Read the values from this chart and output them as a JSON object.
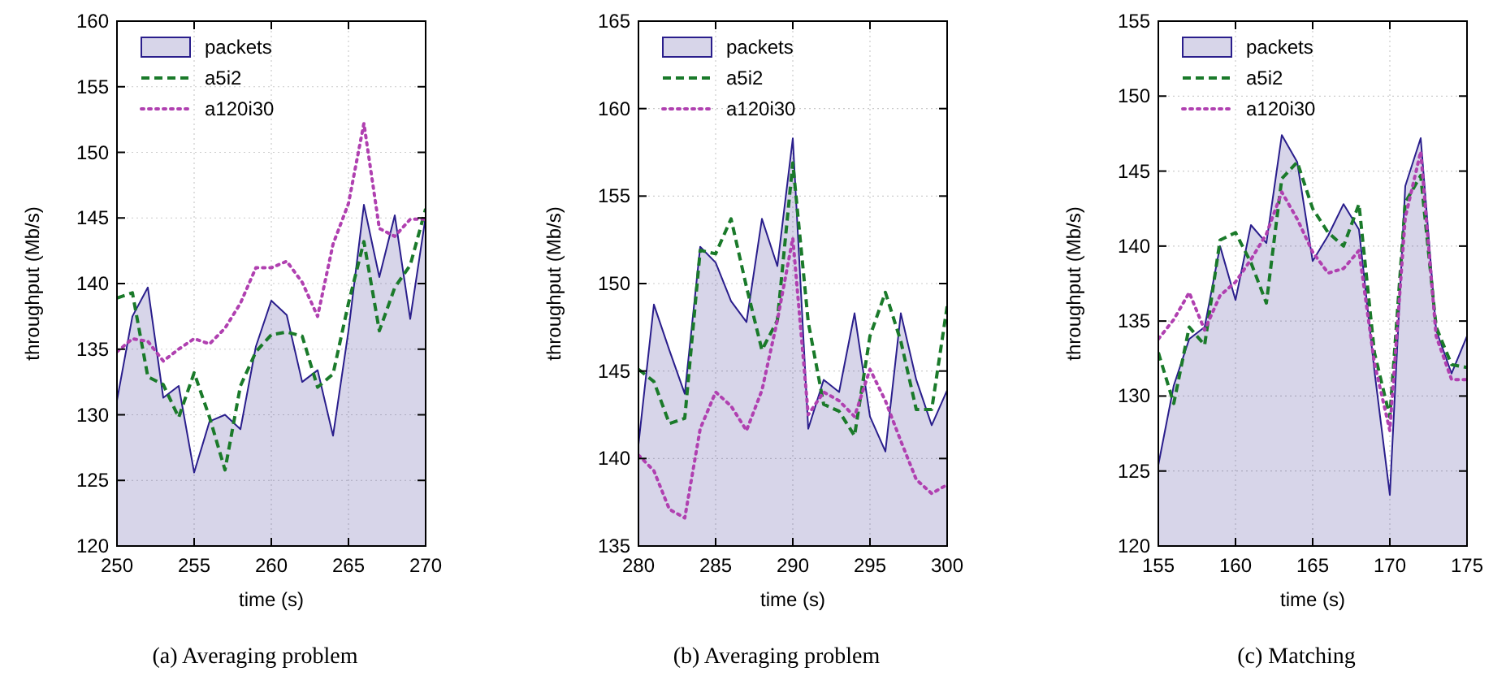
{
  "chart_data": [
    {
      "type": "line",
      "xlabel": "time (s)",
      "ylabel": "throughput (Mb/s)",
      "annotations": [
        "(a) Averaging problem"
      ],
      "x": [
        250,
        251,
        252,
        253,
        254,
        255,
        256,
        257,
        258,
        259,
        260,
        261,
        262,
        263,
        264,
        265,
        266,
        267,
        268,
        269,
        270
      ],
      "xlim": [
        250,
        270
      ],
      "xticks": [
        250,
        255,
        260,
        265,
        270
      ],
      "ylim": [
        120,
        160
      ],
      "yticks": [
        120,
        125,
        130,
        135,
        140,
        145,
        150,
        155,
        160
      ],
      "grid": true,
      "legend": "top left",
      "series": [
        {
          "name": "packets",
          "type": "area",
          "color": "#2a1e8c",
          "line_style": "solid",
          "values": [
            131.1,
            137.5,
            139.7,
            131.3,
            132.2,
            125.6,
            129.5,
            130,
            128.9,
            135.2,
            138.7,
            137.6,
            132.5,
            133.4,
            128.4,
            136.4,
            146,
            140.5,
            145.2,
            137.3,
            145.1
          ]
        },
        {
          "name": "a5i2",
          "type": "line",
          "color": "#1a7a2a",
          "line_style": "dashed",
          "values": [
            138.9,
            139.3,
            132.9,
            132.3,
            129.8,
            133.2,
            129.8,
            125.8,
            132.2,
            134.8,
            136.1,
            136.3,
            136,
            132.1,
            133.1,
            138.5,
            143.2,
            136.4,
            139.7,
            141.4,
            145.7
          ]
        },
        {
          "name": "a120i30",
          "type": "line",
          "color": "#b040b0",
          "line_style": "dotted",
          "values": [
            134.8,
            135.8,
            135.6,
            134.1,
            135,
            135.8,
            135.4,
            136.6,
            138.5,
            141.2,
            141.2,
            141.7,
            140.1,
            137.5,
            143,
            146.1,
            152.2,
            144.2,
            143.6,
            144.9,
            144.9
          ]
        }
      ]
    },
    {
      "type": "line",
      "xlabel": "time (s)",
      "ylabel": "throughput (Mb/s)",
      "annotations": [
        "(b) Averaging problem"
      ],
      "x": [
        280,
        281,
        282,
        283,
        284,
        285,
        286,
        287,
        288,
        289,
        290,
        291,
        292,
        293,
        294,
        295,
        296,
        297,
        298,
        299,
        300
      ],
      "xlim": [
        280,
        300
      ],
      "xticks": [
        280,
        285,
        290,
        295,
        300
      ],
      "ylim": [
        135,
        165
      ],
      "yticks": [
        135,
        140,
        145,
        150,
        155,
        160,
        165
      ],
      "grid": true,
      "legend": "top left",
      "series": [
        {
          "name": "packets",
          "type": "area",
          "color": "#2a1e8c",
          "line_style": "solid",
          "values": [
            140.8,
            148.8,
            146.2,
            143.7,
            152.1,
            151.2,
            149,
            147.8,
            153.7,
            151,
            158.3,
            141.7,
            144.5,
            143.8,
            148.3,
            142.4,
            140.4,
            148.3,
            144.5,
            141.9,
            143.9
          ]
        },
        {
          "name": "a5i2",
          "type": "line",
          "color": "#1a7a2a",
          "line_style": "dashed",
          "values": [
            145.1,
            144.4,
            142,
            142.3,
            151.9,
            151.7,
            153.7,
            149.8,
            146.2,
            147.9,
            156.9,
            147.8,
            143.1,
            142.7,
            141.3,
            147,
            149.5,
            146.7,
            142.8,
            142.8,
            148.7
          ]
        },
        {
          "name": "a120i30",
          "type": "line",
          "color": "#b040b0",
          "line_style": "dotted",
          "values": [
            140.2,
            139.3,
            137.1,
            136.6,
            141.7,
            143.8,
            143,
            141.6,
            143.9,
            147.9,
            152.6,
            142.5,
            143.8,
            143.3,
            142.4,
            145.1,
            143.3,
            141,
            138.8,
            138,
            138.5
          ]
        }
      ]
    },
    {
      "type": "line",
      "xlabel": "time (s)",
      "ylabel": "throughput (Mb/s)",
      "annotations": [
        "(c) Matching"
      ],
      "x": [
        155,
        156,
        157,
        158,
        159,
        160,
        161,
        162,
        163,
        164,
        165,
        166,
        167,
        168,
        169,
        170,
        171,
        172,
        173,
        174,
        175
      ],
      "xlim": [
        155,
        175
      ],
      "xticks": [
        155,
        160,
        165,
        170,
        175
      ],
      "ylim": [
        120,
        155
      ],
      "yticks": [
        120,
        125,
        130,
        135,
        140,
        145,
        150,
        155
      ],
      "grid": true,
      "legend": "top left",
      "series": [
        {
          "name": "packets",
          "type": "area",
          "color": "#2a1e8c",
          "line_style": "solid",
          "values": [
            125.4,
            130.7,
            133.8,
            134.6,
            140,
            136.4,
            141.4,
            140.2,
            147.4,
            145.6,
            139,
            140.7,
            142.8,
            141.1,
            131.7,
            123.4,
            144,
            147.2,
            134.4,
            131.5,
            134
          ]
        },
        {
          "name": "a5i2",
          "type": "line",
          "color": "#1a7a2a",
          "line_style": "dashed",
          "values": [
            132.9,
            129.5,
            134.6,
            133.4,
            140.4,
            140.9,
            138.9,
            136.2,
            144.5,
            145.6,
            142.5,
            140.9,
            140,
            142.8,
            132.9,
            128.6,
            142.9,
            144.7,
            134.6,
            132.1,
            131.9
          ]
        },
        {
          "name": "a120i30",
          "type": "line",
          "color": "#b040b0",
          "line_style": "dotted",
          "values": [
            133.8,
            135.1,
            136.9,
            134.4,
            136.7,
            137.6,
            139.1,
            140.8,
            143.6,
            141.8,
            139.6,
            138.2,
            138.5,
            139.7,
            132.2,
            127.7,
            141.9,
            146.3,
            134,
            131.1,
            131.1
          ]
        }
      ]
    }
  ]
}
